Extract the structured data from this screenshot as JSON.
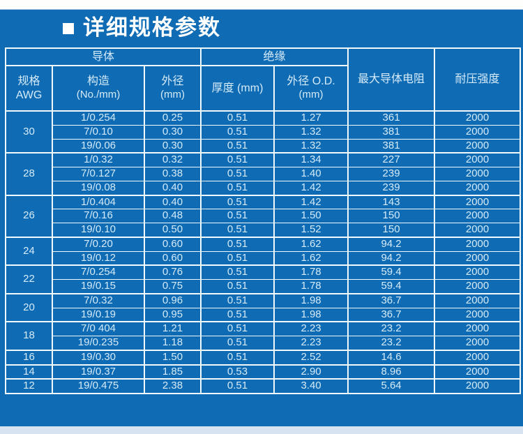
{
  "page": {
    "title": "详细规格参数"
  },
  "table": {
    "header": {
      "conductor_group": "导体",
      "insulation_group": "绝缘",
      "awg_line1": "规格",
      "awg_line2": "AWG",
      "construction_line1": "构造",
      "construction_line2": "(No./mm)",
      "cond_od_line1": "外径",
      "cond_od_line2": "(mm)",
      "thickness": "厚度  (mm)",
      "ins_od_line1": "外径  O.D.",
      "ins_od_line2": "(mm)",
      "resistance": "最大导体电阻",
      "voltage": "耐压强度"
    },
    "groups": [
      {
        "awg": "30",
        "rows": [
          [
            "1/0.254",
            "0.25",
            "0.51",
            "1.27",
            "361",
            "2000"
          ],
          [
            "7/0.10",
            "0.30",
            "0.51",
            "1.32",
            "381",
            "2000"
          ],
          [
            "19/0.06",
            "0.30",
            "0.51",
            "1.32",
            "381",
            "2000"
          ]
        ]
      },
      {
        "awg": "28",
        "rows": [
          [
            "1/0.32",
            "0.32",
            "0.51",
            "1.34",
            "227",
            "2000"
          ],
          [
            "7/0.127",
            "0.38",
            "0.51",
            "1.40",
            "239",
            "2000"
          ],
          [
            "19/0.08",
            "0.40",
            "0.51",
            "1.42",
            "239",
            "2000"
          ]
        ]
      },
      {
        "awg": "26",
        "rows": [
          [
            "1/0.404",
            "0.40",
            "0.51",
            "1.42",
            "143",
            "2000"
          ],
          [
            "7/0.16",
            "0.48",
            "0.51",
            "1.50",
            "150",
            "2000"
          ],
          [
            "19/0.10",
            "0.50",
            "0.51",
            "1.52",
            "150",
            "2000"
          ]
        ]
      },
      {
        "awg": "24",
        "rows": [
          [
            "7/0.20",
            "0.60",
            "0.51",
            "1.62",
            "94.2",
            "2000"
          ],
          [
            "19/0.12",
            "0.60",
            "0.51",
            "1.62",
            "94.2",
            "2000"
          ]
        ]
      },
      {
        "awg": "22",
        "rows": [
          [
            "7/0.254",
            "0.76",
            "0.51",
            "1.78",
            "59.4",
            "2000"
          ],
          [
            "19/0.15",
            "0.75",
            "0.51",
            "1.78",
            "59.4",
            "2000"
          ]
        ]
      },
      {
        "awg": "20",
        "rows": [
          [
            "7/0.32",
            "0.96",
            "0.51",
            "1.98",
            "36.7",
            "2000"
          ],
          [
            "19/0.19",
            "0.95",
            "0.51",
            "1.98",
            "36.7",
            "2000"
          ]
        ]
      },
      {
        "awg": "18",
        "rows": [
          [
            "7/0 404",
            "1.21",
            "0.51",
            "2.23",
            "23.2",
            "2000"
          ],
          [
            "19/0.235",
            "1.18",
            "0.51",
            "2.23",
            "23.2",
            "2000"
          ]
        ]
      },
      {
        "awg": "16",
        "rows": [
          [
            "19/0.30",
            "1.50",
            "0.51",
            "2.52",
            "14.6",
            "2000"
          ]
        ]
      },
      {
        "awg": "14",
        "rows": [
          [
            "19/0.37",
            "1.85",
            "0.53",
            "2.90",
            "8.96",
            "2000"
          ]
        ]
      },
      {
        "awg": "12",
        "rows": [
          [
            "19/0.475",
            "2.38",
            "0.51",
            "3.40",
            "5.64",
            "2000"
          ]
        ]
      }
    ],
    "colors": {
      "background_blue": "#0e6bb4",
      "border_white": "#f2f9ff",
      "text_light": "#d6ebfa",
      "top_strip": "#fefefc",
      "bottom_strip": "#d7e3f0"
    }
  }
}
